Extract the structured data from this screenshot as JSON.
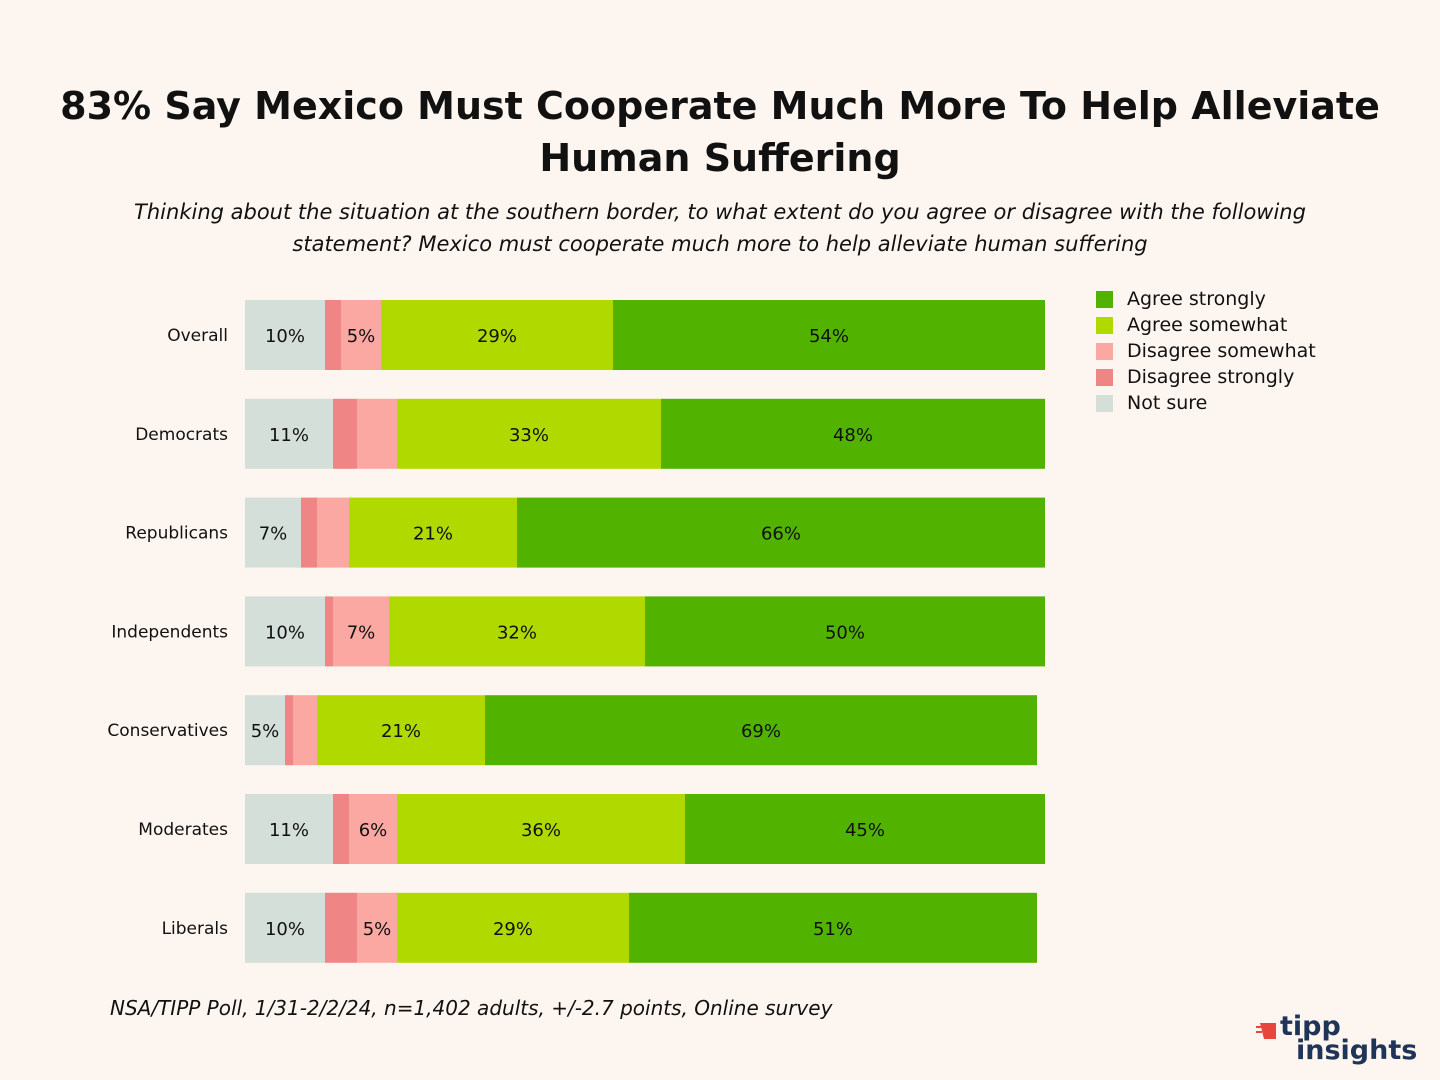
{
  "title": "83% Say Mexico Must Cooperate Much More To Help Alleviate Human Suffering",
  "subtitle": "Thinking about the situation at the southern border, to what extent do you agree or disagree with the following statement? Mexico must cooperate much more to help alleviate human suffering",
  "source": "NSA/TIPP Poll, 1/31-2/2/24, n=1,402 adults, +/-2.7 points, Online survey",
  "logo": {
    "top": "tipp",
    "bottom": "insights"
  },
  "colors": {
    "Not sure": "#d5dfda",
    "Disagree strongly": "#ef8585",
    "Disagree somewhat": "#fba8a3",
    "Agree somewhat": "#b0d900",
    "Agree strongly": "#52b200",
    "logo_red": "#e8463c",
    "logo_navy": "#1f3557"
  },
  "chart_data": {
    "type": "stacked-bar-horizontal",
    "categories": [
      "Overall",
      "Democrats",
      "Republicans",
      "Independents",
      "Conservatives",
      "Moderates",
      "Liberals"
    ],
    "series": [
      {
        "name": "Not sure",
        "values": [
          10,
          11,
          7,
          10,
          5,
          11,
          10
        ]
      },
      {
        "name": "Disagree strongly",
        "values": [
          2,
          3,
          2,
          1,
          1,
          2,
          4
        ]
      },
      {
        "name": "Disagree somewhat",
        "values": [
          5,
          5,
          4,
          7,
          3,
          6,
          5
        ]
      },
      {
        "name": "Agree somewhat",
        "values": [
          29,
          33,
          21,
          32,
          21,
          36,
          29
        ]
      },
      {
        "name": "Agree strongly",
        "values": [
          54,
          48,
          66,
          50,
          69,
          45,
          51
        ]
      }
    ],
    "data_labels": [
      [
        "10%",
        "",
        "5%",
        "29%",
        "54%"
      ],
      [
        "11%",
        "",
        "",
        "33%",
        "48%"
      ],
      [
        "7%",
        "",
        "",
        "21%",
        "66%"
      ],
      [
        "10%",
        "",
        "7%",
        "32%",
        "50%"
      ],
      [
        "5%",
        "",
        "",
        "21%",
        "69%"
      ],
      [
        "11%",
        "",
        "6%",
        "36%",
        "45%"
      ],
      [
        "10%",
        "",
        "5%",
        "29%",
        "51%"
      ]
    ],
    "legend_order": [
      "Agree strongly",
      "Agree somewhat",
      "Disagree somewhat",
      "Disagree strongly",
      "Not sure"
    ],
    "legend_position": "top-right",
    "xlim": [
      0,
      100
    ],
    "grid": false
  }
}
